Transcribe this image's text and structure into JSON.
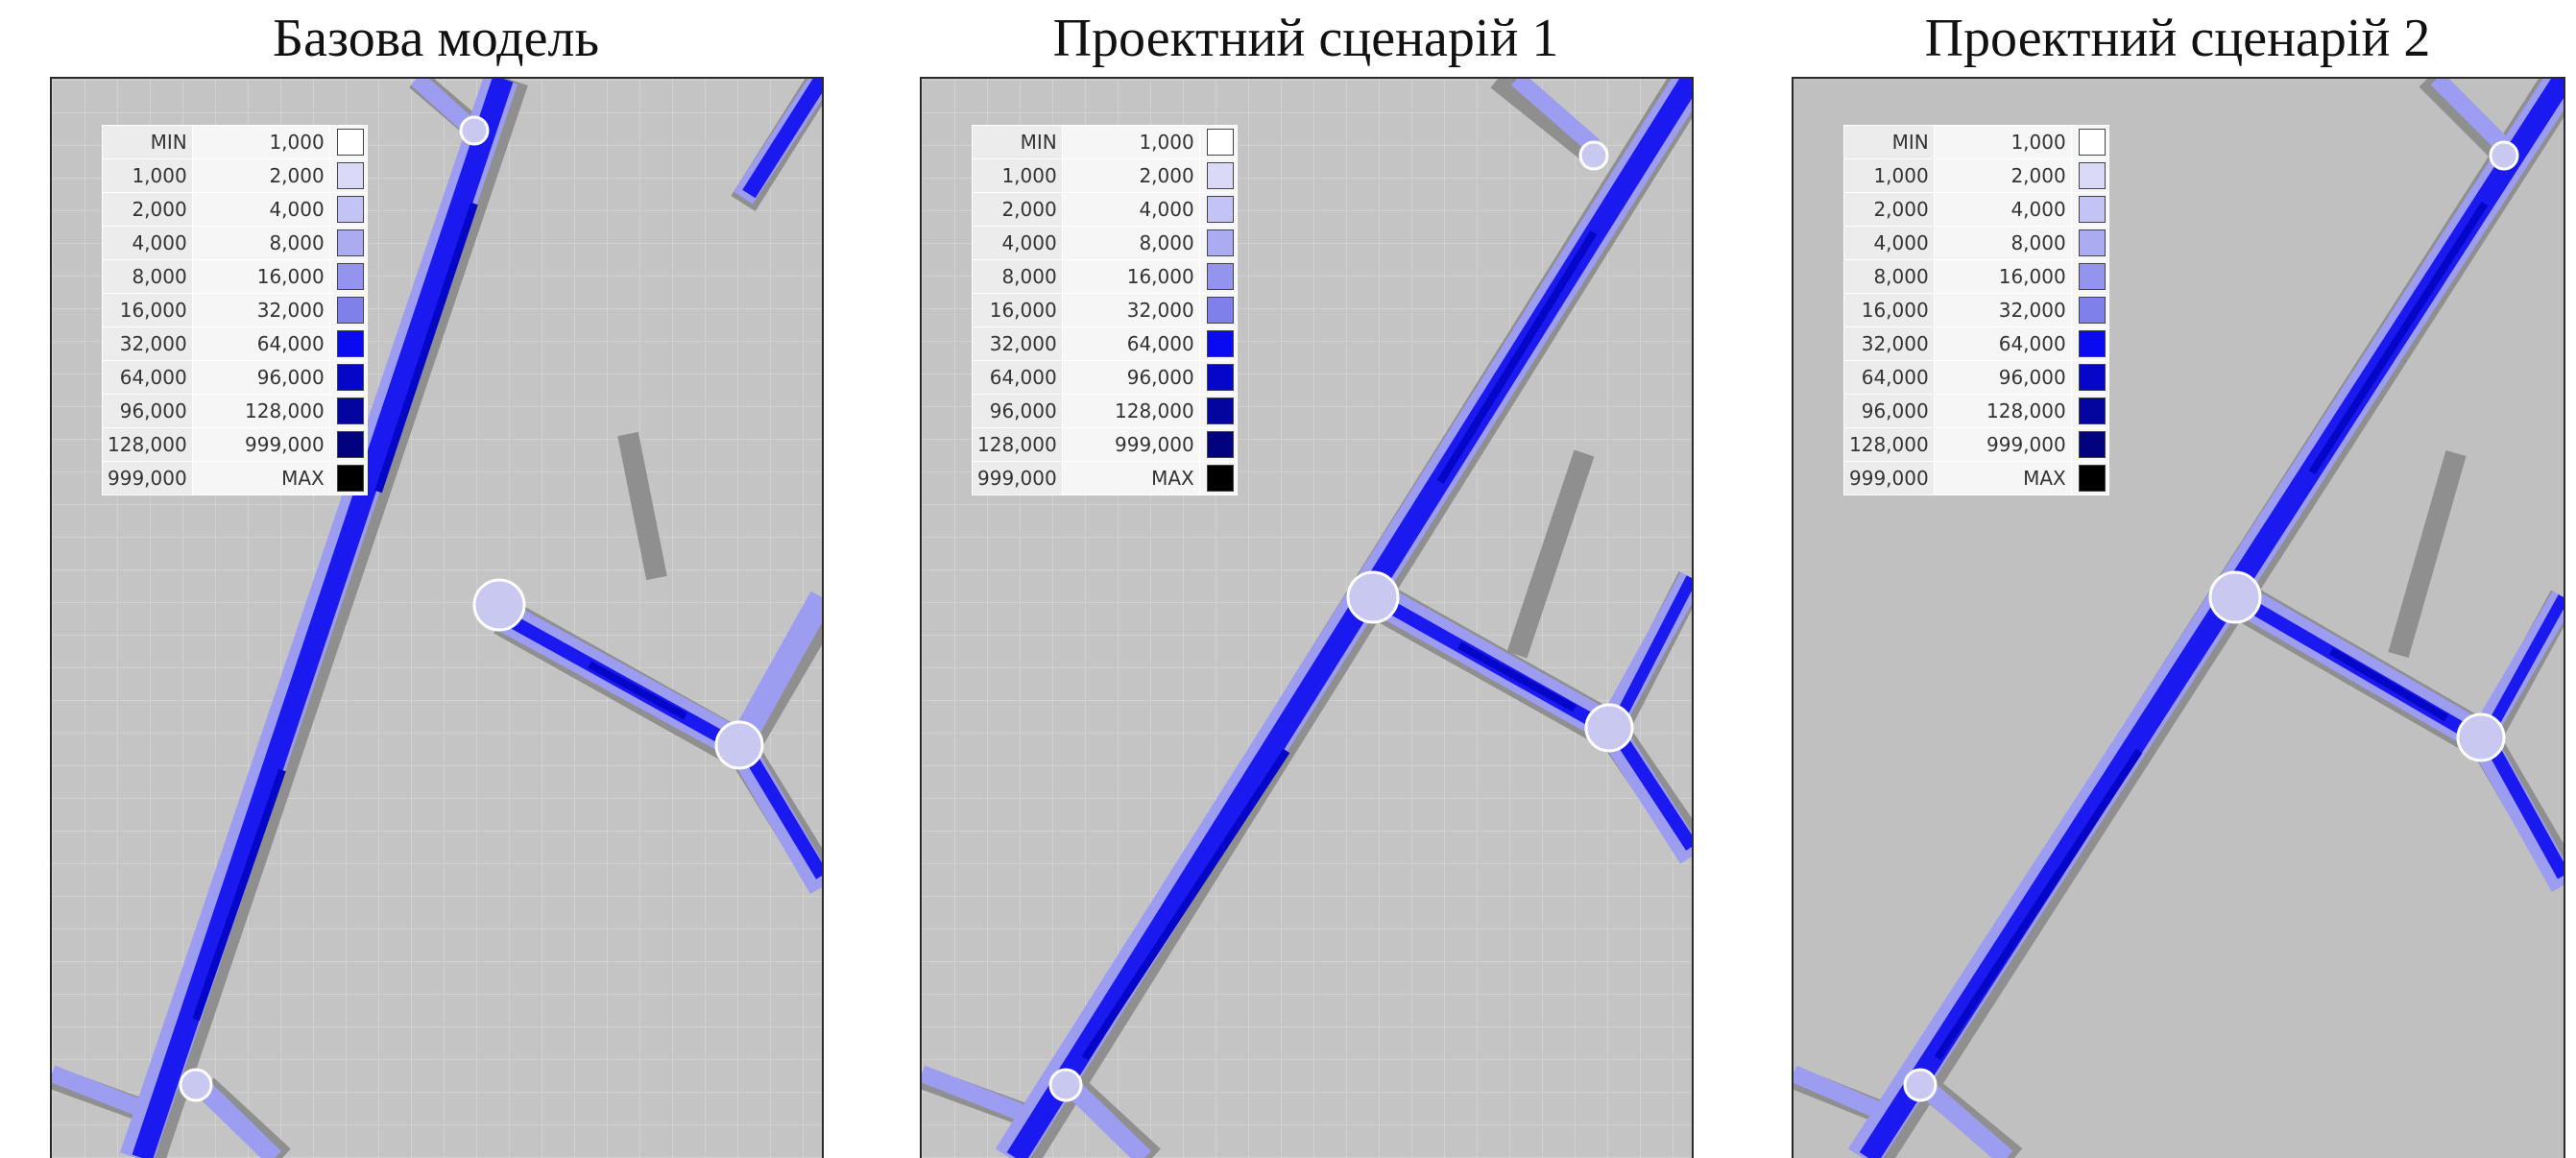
{
  "legend": {
    "rows": [
      {
        "from": "MIN",
        "to": "1,000",
        "color": "#ffffff"
      },
      {
        "from": "1,000",
        "to": "2,000",
        "color": "#dadaf8"
      },
      {
        "from": "2,000",
        "to": "4,000",
        "color": "#c3c3f5"
      },
      {
        "from": "4,000",
        "to": "8,000",
        "color": "#ababf1"
      },
      {
        "from": "8,000",
        "to": "16,000",
        "color": "#9494ee"
      },
      {
        "from": "16,000",
        "to": "32,000",
        "color": "#8080ea"
      },
      {
        "from": "32,000",
        "to": "64,000",
        "color": "#0a0af0"
      },
      {
        "from": "64,000",
        "to": "96,000",
        "color": "#0606c8"
      },
      {
        "from": "96,000",
        "to": "128,000",
        "color": "#04049e"
      },
      {
        "from": "128,000",
        "to": "999,000",
        "color": "#02027f"
      },
      {
        "from": "999,000",
        "to": "MAX",
        "color": "#000000"
      }
    ]
  },
  "panels": [
    {
      "title": "Базова модель",
      "grid": true
    },
    {
      "title": "Проектний сценарій 1",
      "grid": true
    },
    {
      "title": "Проектний сценарій 2",
      "grid": false
    }
  ],
  "colors": {
    "map_background": "#c4c4c4",
    "road_shadow": "#8a8a8a",
    "road_base": "#9c9cf0",
    "traffic_heavy": "#1a1af0",
    "traffic_dark": "#0606c8",
    "intersection": "#c8c8f0"
  }
}
